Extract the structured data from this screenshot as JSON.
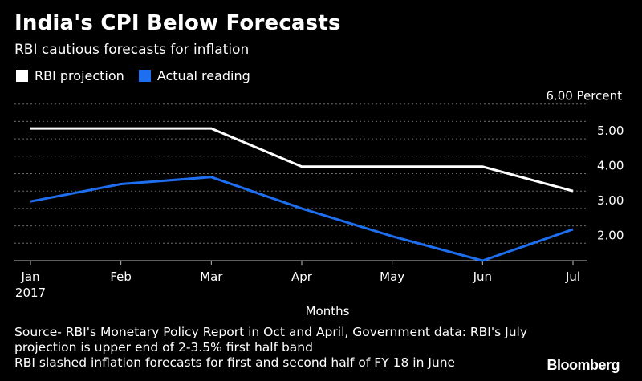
{
  "title": "India's CPI Below Forecasts",
  "subtitle": "RBI cautious forecasts for inflation",
  "legend": [
    {
      "label": "RBI projection",
      "color": "#ffffff"
    },
    {
      "label": "Actual reading",
      "color": "#1e6ef0"
    }
  ],
  "footnote": {
    "line1": "Source- RBI's Monetary Policy Report in Oct and April, Government data: RBI's July",
    "line2": "projection is upper end of 2-3.5% first half band",
    "line3": "RBI slashed inflation forecasts for first and second half of FY 18 in June"
  },
  "brand": "Bloomberg",
  "chart_data": {
    "type": "line",
    "categories": [
      "Jan",
      "Feb",
      "Mar",
      "Apr",
      "May",
      "Jun",
      "Jul"
    ],
    "category_sublabels": [
      "2017",
      "",
      "",
      "",
      "",
      "",
      ""
    ],
    "xlabel": "Months",
    "ylabel": "",
    "yticks": [
      {
        "value": 2,
        "label": "2.00"
      },
      {
        "value": 3,
        "label": "3.00"
      },
      {
        "value": 4,
        "label": "4.00"
      },
      {
        "value": 5,
        "label": "5.00"
      },
      {
        "value": 6,
        "label": "6.00 Percent"
      }
    ],
    "ylim": [
      1.5,
      6.5
    ],
    "grid": true,
    "legend_position": "top-left",
    "series": [
      {
        "name": "RBI projection",
        "color": "#ffffff",
        "points": [
          {
            "x": "Jan",
            "y": 5.3
          },
          {
            "x": "Mar",
            "y": 5.3
          },
          {
            "x": "Apr",
            "y": 4.2
          },
          {
            "x": "Jun",
            "y": 4.2
          },
          {
            "x": "Jul",
            "y": 3.5
          }
        ]
      },
      {
        "name": "Actual reading",
        "color": "#1e6ef0",
        "points": [
          {
            "x": "Jan",
            "y": 3.2
          },
          {
            "x": "Feb",
            "y": 3.7
          },
          {
            "x": "Mar",
            "y": 3.9
          },
          {
            "x": "Apr",
            "y": 3.0
          },
          {
            "x": "May",
            "y": 2.2
          },
          {
            "x": "Jun",
            "y": 1.5
          },
          {
            "x": "Jul",
            "y": 2.4
          }
        ]
      }
    ]
  }
}
